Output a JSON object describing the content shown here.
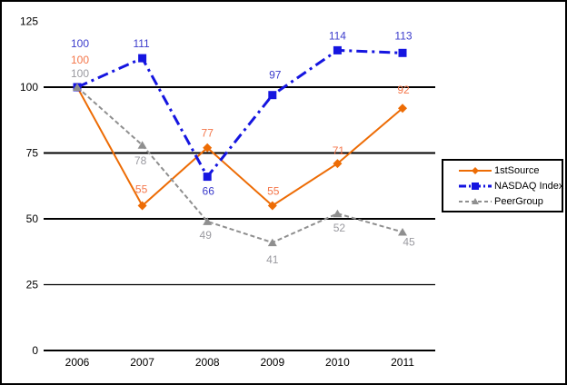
{
  "chart_data": {
    "type": "line",
    "categories": [
      "2006",
      "2007",
      "2008",
      "2009",
      "2010",
      "2011"
    ],
    "series": [
      {
        "name": "1stSource",
        "color": "#ed6c05",
        "label_color": "#f4764a",
        "marker": "diamond",
        "line_style": "solid",
        "line_width": 2,
        "values": [
          100,
          55,
          77,
          55,
          71,
          92
        ],
        "label_offsets": [
          [
            3,
            -30
          ],
          [
            -1,
            -18
          ],
          [
            0,
            -16
          ],
          [
            1,
            -16
          ],
          [
            1,
            -14
          ],
          [
            1,
            -20
          ]
        ]
      },
      {
        "name": "NASDAQ Index",
        "color": "#1515e0",
        "label_color": "#3d3dcc",
        "marker": "square",
        "line_style": "dashdot",
        "line_width": 3,
        "values": [
          100,
          111,
          66,
          97,
          114,
          113
        ],
        "label_offsets": [
          [
            3,
            -48
          ],
          [
            -1,
            -16
          ],
          [
            1,
            16
          ],
          [
            3,
            -22
          ],
          [
            0,
            -16
          ],
          [
            1,
            -19
          ]
        ]
      },
      {
        "name": "PeerGroup",
        "color": "#8f8f8f",
        "label_color": "#9a9aa0",
        "marker": "triangle",
        "line_style": "dash",
        "line_width": 2,
        "values": [
          100,
          78,
          49,
          41,
          52,
          45
        ],
        "label_offsets": [
          [
            3,
            -15
          ],
          [
            -2,
            17
          ],
          [
            -2,
            15
          ],
          [
            0,
            19
          ],
          [
            2,
            16
          ],
          [
            7,
            11
          ]
        ]
      }
    ],
    "yticks": [
      0,
      25,
      50,
      75,
      100,
      125
    ],
    "ylim": [
      0,
      125
    ],
    "grid": true,
    "legend_position": "right",
    "title": "",
    "xlabel": "",
    "ylabel": ""
  },
  "colors": {
    "axis_text": "#000000",
    "gridline": "#000000",
    "background": "#ffffff",
    "frame_border": "#000000"
  }
}
